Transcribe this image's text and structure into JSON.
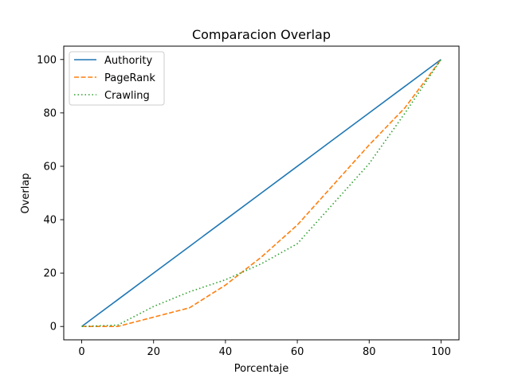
{
  "chart_data": {
    "type": "line",
    "title": "Comparacion Overlap",
    "xlabel": "Porcentaje",
    "ylabel": "Overlap",
    "xlim": [
      -5,
      105
    ],
    "ylim": [
      -5,
      105
    ],
    "xticks": [
      0,
      20,
      40,
      60,
      80,
      100
    ],
    "yticks": [
      0,
      20,
      40,
      60,
      80,
      100
    ],
    "grid": false,
    "legend_position": "top-left",
    "series": [
      {
        "name": "Authority",
        "color": "#1f77b4",
        "style": "solid",
        "x": [
          0,
          10,
          20,
          30,
          40,
          50,
          60,
          70,
          80,
          90,
          100
        ],
        "y": [
          0,
          10,
          20,
          30,
          40,
          50,
          60,
          70,
          80,
          90,
          100
        ]
      },
      {
        "name": "PageRank",
        "color": "#ff7f0e",
        "style": "dashed",
        "x": [
          0,
          10,
          20,
          30,
          40,
          50,
          60,
          70,
          80,
          90,
          100
        ],
        "y": [
          0,
          0,
          3.5,
          7,
          15.5,
          26,
          38,
          53,
          68,
          82,
          100
        ]
      },
      {
        "name": "Crawling",
        "color": "#2ca02c",
        "style": "dotted",
        "x": [
          0,
          10,
          20,
          30,
          40,
          50,
          60,
          70,
          80,
          90,
          100
        ],
        "y": [
          0,
          0.5,
          7.5,
          13,
          17.5,
          23.5,
          31,
          46,
          61,
          80,
          100
        ]
      }
    ]
  }
}
